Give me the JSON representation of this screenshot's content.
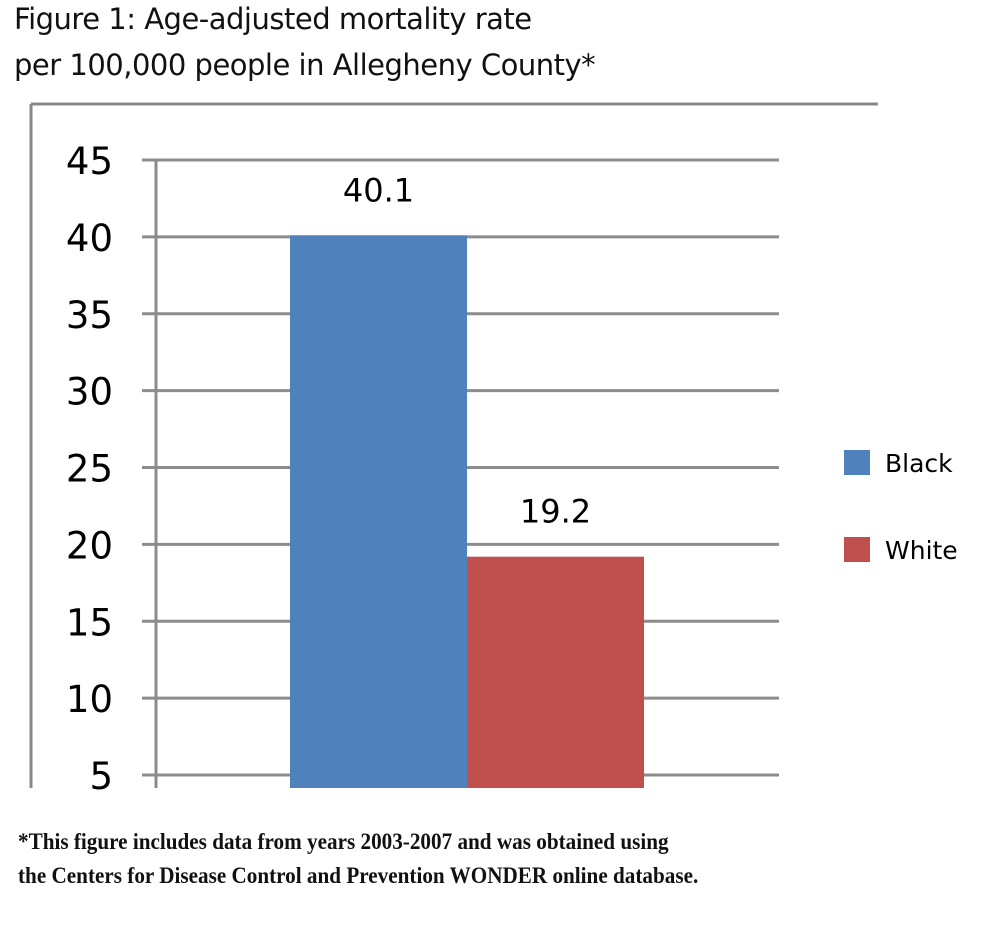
{
  "chart_data": {
    "type": "bar",
    "title_lines": [
      "Figure 1: Age-adjusted mortality rate",
      "per 100,000 people in Allegheny County*"
    ],
    "categories": [
      ""
    ],
    "series": [
      {
        "name": "Black",
        "values": [
          40.1
        ],
        "label": "40.1",
        "color": "#4F81BD"
      },
      {
        "name": "White",
        "values": [
          19.2
        ],
        "label": "19.2",
        "color": "#C0504D"
      }
    ],
    "yticks": [
      "5",
      "10",
      "15",
      "20",
      "25",
      "30",
      "35",
      "40",
      "45"
    ],
    "ytick_values": [
      5,
      10,
      15,
      20,
      25,
      30,
      35,
      40,
      45
    ],
    "ylim": [
      4.5,
      45
    ],
    "xlabel": "",
    "ylabel": "",
    "grid": true,
    "legend": "right"
  },
  "footnote": [
    "*This figure includes data from years 2003-2007 and was obtained using",
    "the Centers for Disease Control and Prevention WONDER online database."
  ]
}
